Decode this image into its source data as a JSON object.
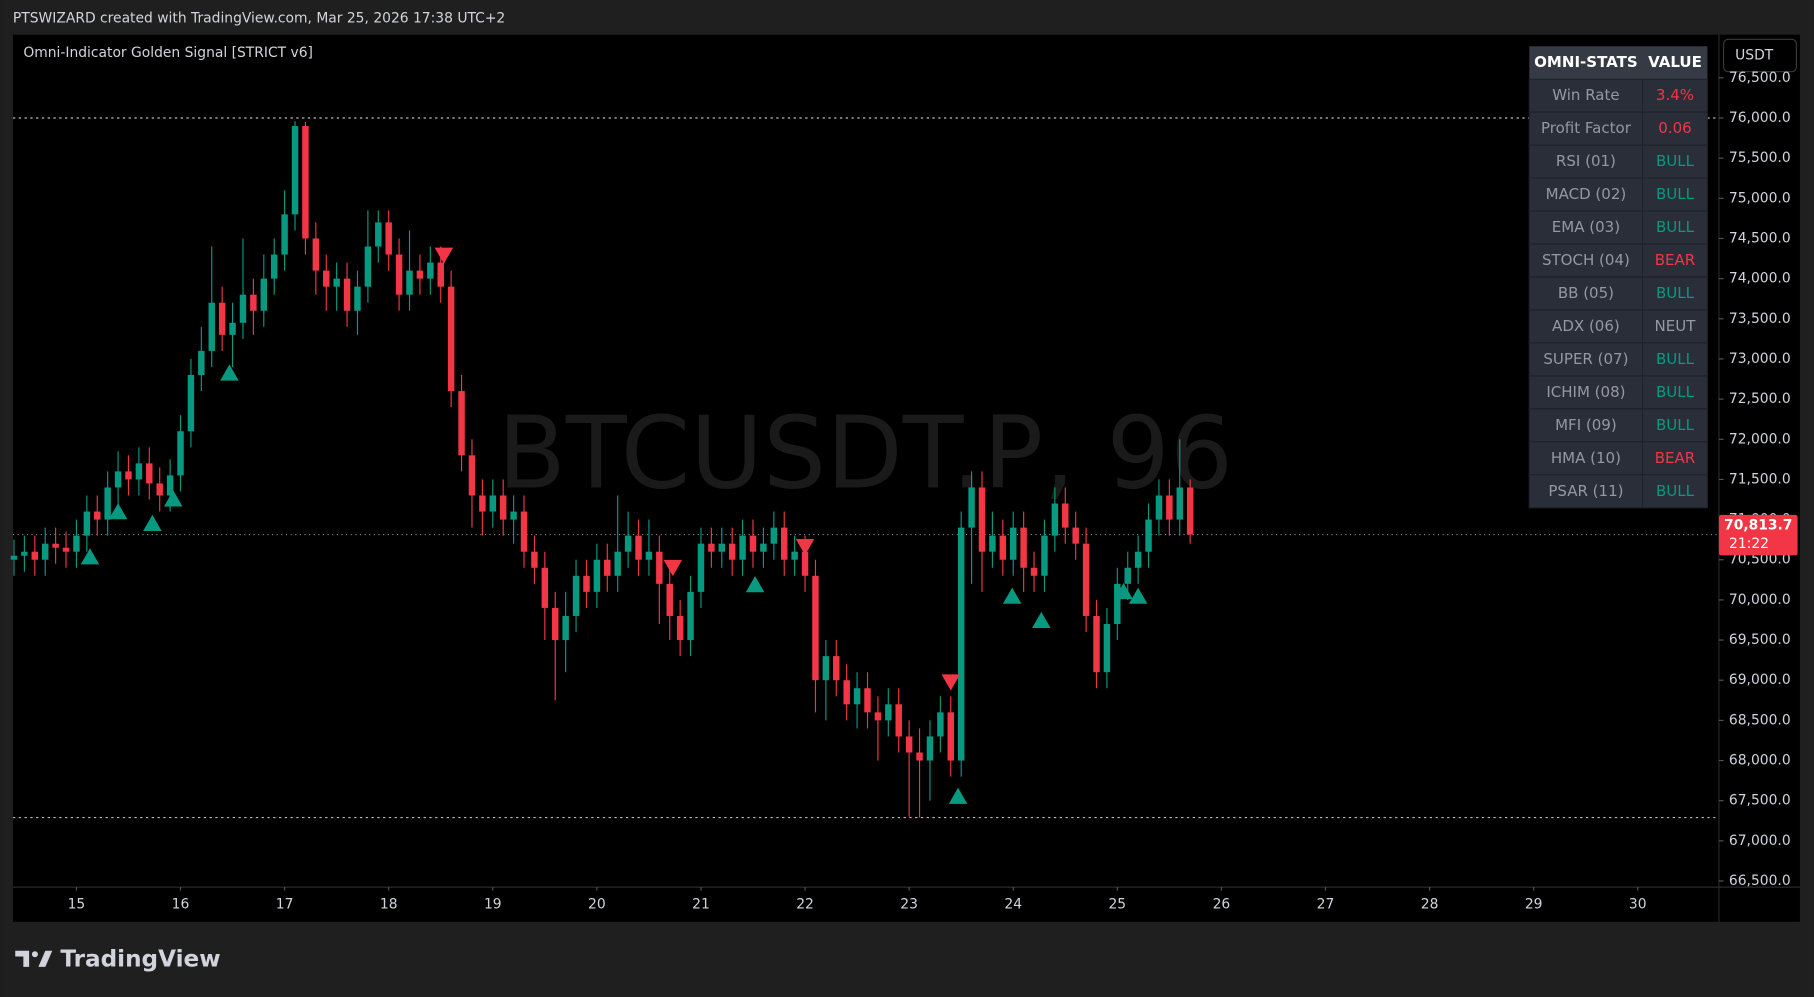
{
  "header": {
    "attribution": "PTSWIZARD created with TradingView.com, Mar 25, 2026 17:38 UTC+2"
  },
  "footer": {
    "brand": "TradingView"
  },
  "stats_table": {
    "header": [
      "OMNI-STATS",
      "VALUE"
    ],
    "rows": [
      {
        "label": "Win Rate",
        "value": "3.4%",
        "color": "#f23645"
      },
      {
        "label": "Profit Factor",
        "value": "0.06",
        "color": "#f23645"
      },
      {
        "label": "RSI (01)",
        "value": "BULL",
        "color": "#089981"
      },
      {
        "label": "MACD (02)",
        "value": "BULL",
        "color": "#089981"
      },
      {
        "label": "EMA (03)",
        "value": "BULL",
        "color": "#089981"
      },
      {
        "label": "STOCH (04)",
        "value": "BEAR",
        "color": "#f23645"
      },
      {
        "label": "BB (05)",
        "value": "BULL",
        "color": "#089981"
      },
      {
        "label": "ADX (06)",
        "value": "NEUT",
        "color": "#9598a1"
      },
      {
        "label": "SUPER (07)",
        "value": "BULL",
        "color": "#089981"
      },
      {
        "label": "ICHIM (08)",
        "value": "BULL",
        "color": "#089981"
      },
      {
        "label": "MFI (09)",
        "value": "BULL",
        "color": "#089981"
      },
      {
        "label": "HMA (10)",
        "value": "BEAR",
        "color": "#f23645"
      },
      {
        "label": "PSAR (11)",
        "value": "BULL",
        "color": "#089981"
      }
    ]
  },
  "chart_data": {
    "type": "candlestick",
    "title": "Omni-Indicator Golden Signal [STRICT v6]",
    "watermark": "BTCUSDT.P, 96",
    "currency": "USDT",
    "up_color": "#089981",
    "down_color": "#f23645",
    "x": [
      14.4,
      14.5,
      14.6,
      14.7,
      14.8,
      14.9,
      15.0,
      15.1,
      15.2,
      15.3,
      15.4,
      15.5,
      15.6,
      15.7,
      15.8,
      15.9,
      16.0,
      16.1,
      16.2,
      16.3,
      16.4,
      16.5,
      16.6,
      16.7,
      16.8,
      16.9,
      17.0,
      17.1,
      17.2,
      17.3,
      17.4,
      17.5,
      17.6,
      17.7,
      17.8,
      17.9,
      18.0,
      18.1,
      18.2,
      18.3,
      18.4,
      18.5,
      18.6,
      18.7,
      18.8,
      18.9,
      19.0,
      19.1,
      19.2,
      19.3,
      19.4,
      19.5,
      19.6,
      19.7,
      19.8,
      19.9,
      20.0,
      20.1,
      20.2,
      20.3,
      20.4,
      20.5,
      20.6,
      20.7,
      20.8,
      20.9,
      21.0,
      21.1,
      21.2,
      21.3,
      21.4,
      21.5,
      21.6,
      21.7,
      21.8,
      21.9,
      22.0,
      22.1,
      22.2,
      22.3,
      22.4,
      22.5,
      22.6,
      22.7,
      22.8,
      22.9,
      23.0,
      23.1,
      23.2,
      23.3,
      23.4,
      23.5,
      23.6,
      23.7,
      23.8,
      23.9,
      24.0,
      24.1,
      24.2,
      24.3,
      24.4,
      24.5,
      24.6,
      24.7,
      24.8,
      24.9,
      25.0,
      25.1,
      25.2,
      25.3,
      25.4,
      25.5,
      25.6,
      25.7
    ],
    "open": [
      70500,
      70550,
      70600,
      70500,
      70700,
      70650,
      70600,
      70800,
      71100,
      71000,
      71400,
      71600,
      71500,
      71700,
      71450,
      71300,
      71550,
      72100,
      72800,
      73100,
      73700,
      73300,
      73450,
      73800,
      73600,
      74000,
      74300,
      74800,
      75900,
      74500,
      74100,
      73900,
      74000,
      73600,
      73900,
      74400,
      74700,
      74300,
      73800,
      74100,
      74000,
      74200,
      73900,
      72600,
      71800,
      71300,
      71100,
      71300,
      71000,
      71100,
      70600,
      70400,
      69900,
      69500,
      69800,
      70300,
      70100,
      70500,
      70300,
      70600,
      70800,
      70500,
      70600,
      70200,
      69800,
      69500,
      70100,
      70700,
      70600,
      70700,
      70500,
      70800,
      70600,
      70700,
      70900,
      70500,
      70600,
      70300,
      69000,
      69300,
      69000,
      68700,
      68900,
      68600,
      68500,
      68700,
      68300,
      68100,
      68000,
      68300,
      68600,
      68000,
      70900,
      71400,
      70600,
      70800,
      70500,
      70900,
      70400,
      70300,
      70800,
      71200,
      70900,
      70700,
      69800,
      69100,
      69700,
      70200,
      70400,
      70600,
      71000,
      71300,
      71000,
      71400
    ],
    "high": [
      70750,
      70800,
      70800,
      70900,
      70900,
      70850,
      71000,
      71300,
      71300,
      71600,
      71850,
      71800,
      71900,
      71900,
      71650,
      71750,
      72300,
      73000,
      73400,
      74400,
      73900,
      73700,
      74500,
      74000,
      74300,
      74500,
      75100,
      75960,
      75950,
      74700,
      74300,
      74200,
      74200,
      74100,
      74850,
      74850,
      74850,
      74500,
      74600,
      74300,
      74400,
      74400,
      74100,
      72800,
      72000,
      71500,
      71500,
      71500,
      71300,
      71300,
      70800,
      70600,
      70100,
      70100,
      70500,
      70500,
      70700,
      70700,
      71300,
      71100,
      71000,
      71000,
      70800,
      70400,
      70000,
      70300,
      70900,
      70900,
      70900,
      70900,
      71000,
      71000,
      70900,
      71100,
      71100,
      70800,
      70800,
      70500,
      69500,
      69500,
      69200,
      69100,
      69100,
      68800,
      68900,
      68900,
      68500,
      68400,
      68500,
      68800,
      68800,
      71100,
      71600,
      71600,
      71100,
      71000,
      71100,
      71100,
      70600,
      71000,
      71400,
      71400,
      71100,
      70900,
      70000,
      69900,
      70400,
      70600,
      70800,
      71200,
      71500,
      71500,
      72000,
      71500
    ],
    "low": [
      70300,
      70350,
      70300,
      70300,
      70450,
      70400,
      70400,
      70600,
      70800,
      70800,
      71200,
      71300,
      71300,
      71250,
      71100,
      71100,
      71350,
      71900,
      72600,
      72900,
      73100,
      72900,
      73250,
      73300,
      73400,
      73800,
      74100,
      74600,
      74300,
      73800,
      73600,
      73600,
      73400,
      73300,
      73700,
      74200,
      74100,
      73600,
      73600,
      73800,
      73800,
      73700,
      72400,
      71600,
      70900,
      70800,
      70900,
      70800,
      70700,
      70400,
      70200,
      69500,
      68750,
      69100,
      69600,
      69900,
      69900,
      70100,
      70100,
      70400,
      70300,
      70300,
      69700,
      69500,
      69300,
      69300,
      69900,
      70400,
      70400,
      70300,
      70300,
      70400,
      70400,
      70500,
      70300,
      70300,
      70100,
      68600,
      68500,
      68800,
      68500,
      68400,
      68400,
      68000,
      68300,
      68100,
      67300,
      67290,
      67500,
      68100,
      67800,
      67800,
      70200,
      70100,
      70400,
      70300,
      70300,
      70100,
      70100,
      70100,
      70600,
      70700,
      70500,
      69600,
      68900,
      68900,
      69500,
      70000,
      70200,
      70400,
      70800,
      70800,
      70800,
      70700
    ],
    "close": [
      70550,
      70600,
      70500,
      70700,
      70650,
      70600,
      70800,
      71100,
      71000,
      71400,
      71600,
      71500,
      71700,
      71450,
      71300,
      71550,
      72100,
      72800,
      73100,
      73700,
      73300,
      73450,
      73800,
      73600,
      74000,
      74300,
      74800,
      75900,
      74500,
      74100,
      73900,
      74000,
      73600,
      73900,
      74400,
      74700,
      74300,
      73800,
      74100,
      74000,
      74200,
      73900,
      72600,
      71800,
      71300,
      71100,
      71300,
      71000,
      71100,
      70600,
      70400,
      69900,
      69500,
      69800,
      70300,
      70100,
      70500,
      70300,
      70600,
      70800,
      70500,
      70600,
      70200,
      69800,
      69500,
      70100,
      70700,
      70600,
      70700,
      70500,
      70800,
      70600,
      70700,
      70900,
      70500,
      70600,
      70300,
      69000,
      69300,
      69000,
      68700,
      68900,
      68600,
      68500,
      68700,
      68300,
      68100,
      68000,
      68300,
      68600,
      68000,
      70900,
      71400,
      70600,
      70800,
      70500,
      70900,
      70400,
      70300,
      70800,
      71200,
      70900,
      70700,
      69800,
      69100,
      69700,
      70200,
      70400,
      70600,
      71000,
      71300,
      71000,
      71400,
      70813.7
    ],
    "buy_signals": {
      "color": "#089981",
      "x": [
        15.13,
        15.4,
        15.73,
        15.93,
        16.47,
        21.52,
        23.47,
        23.99,
        24.27,
        25.06,
        25.2
      ],
      "y": [
        70528,
        71090,
        70945,
        71250,
        72817,
        70182,
        67547,
        70038,
        69736,
        70096,
        70038
      ]
    },
    "sell_signals": {
      "color": "#f23645",
      "x": [
        18.53,
        20.73,
        22.0,
        23.4
      ],
      "y": [
        74300,
        70412,
        70672,
        68987
      ]
    },
    "range_lines": [
      76000,
      67290
    ],
    "last_price": {
      "value": 70813.7,
      "label": "70,813.7"
    },
    "countdown": "21:22",
    "xlim": [
      14.39,
      30.78
    ],
    "xticks": [
      15,
      16,
      17,
      18,
      19,
      20,
      21,
      22,
      23,
      24,
      25,
      26,
      27,
      28,
      29,
      30
    ],
    "ylim": [
      66424,
      77037
    ],
    "yticks": [
      {
        "value": 66500,
        "label": "66,500.0"
      },
      {
        "value": 67000,
        "label": "67,000.0"
      },
      {
        "value": 67500,
        "label": "67,500.0"
      },
      {
        "value": 68000,
        "label": "68,000.0"
      },
      {
        "value": 68500,
        "label": "68,500.0"
      },
      {
        "value": 69000,
        "label": "69,000.0"
      },
      {
        "value": 69500,
        "label": "69,500.0"
      },
      {
        "value": 70000,
        "label": "70,000.0"
      },
      {
        "value": 70500,
        "label": "70,500.0"
      },
      {
        "value": 71000,
        "label": "71,000.0"
      },
      {
        "value": 71500,
        "label": "71,500.0"
      },
      {
        "value": 72000,
        "label": "72,000.0"
      },
      {
        "value": 72500,
        "label": "72,500.0"
      },
      {
        "value": 73000,
        "label": "73,000.0"
      },
      {
        "value": 73500,
        "label": "73,500.0"
      },
      {
        "value": 74000,
        "label": "74,000.0"
      },
      {
        "value": 74500,
        "label": "74,500.0"
      },
      {
        "value": 75000,
        "label": "75,000.0"
      },
      {
        "value": 75500,
        "label": "75,500.0"
      },
      {
        "value": 76000,
        "label": "76,000.0"
      },
      {
        "value": 76500,
        "label": "76,500.0"
      }
    ],
    "grid": false
  }
}
